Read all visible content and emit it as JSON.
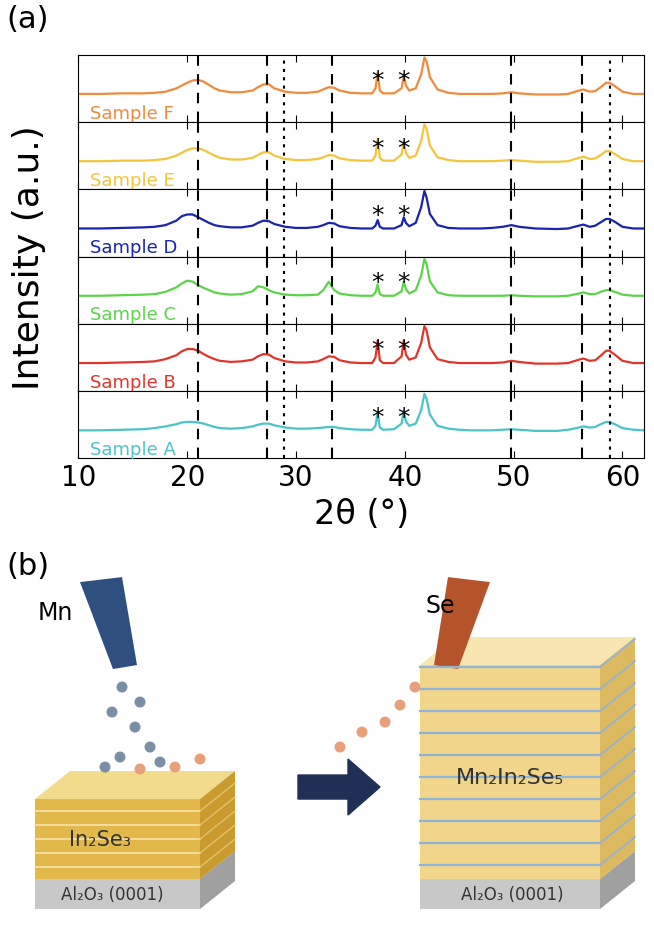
{
  "chart_data": {
    "type": "line",
    "x_label": "2θ (°)",
    "y_label": "Intensity (a.u.)",
    "xlim": [
      10,
      62
    ],
    "xticks": [
      10,
      20,
      30,
      40,
      50,
      60
    ],
    "ylim": [
      -0.2,
      1.0
    ],
    "tick_labels": "x",
    "x": [
      10,
      12,
      14,
      16,
      17,
      18,
      19,
      19.5,
      20,
      20.5,
      21,
      21.5,
      22,
      22.5,
      23,
      24,
      25,
      26,
      26.5,
      27,
      27.5,
      28,
      29,
      30,
      31,
      32,
      32.5,
      33,
      33.5,
      34,
      35,
      36,
      37,
      37.3,
      37.5,
      37.7,
      38,
      39,
      39.7,
      39.9,
      40.1,
      40.4,
      41,
      41.5,
      41.8,
      42,
      42.3,
      43,
      44,
      45,
      46,
      47,
      48,
      49,
      49.8,
      50.5,
      52,
      54,
      55,
      56,
      56.4,
      57,
      57.5,
      58,
      58.5,
      58.8,
      59.3,
      60,
      61,
      62
    ],
    "series": [
      {
        "name": "Sample F",
        "color": "#F08A3C",
        "values": [
          0.3,
          0.3,
          0.31,
          0.31,
          0.32,
          0.34,
          0.4,
          0.45,
          0.5,
          0.54,
          0.55,
          0.52,
          0.46,
          0.4,
          0.36,
          0.33,
          0.33,
          0.36,
          0.42,
          0.47,
          0.47,
          0.4,
          0.34,
          0.32,
          0.32,
          0.34,
          0.38,
          0.42,
          0.41,
          0.36,
          0.32,
          0.31,
          0.31,
          0.4,
          0.68,
          0.36,
          0.31,
          0.31,
          0.4,
          0.62,
          0.45,
          0.36,
          0.4,
          0.65,
          0.95,
          0.88,
          0.6,
          0.38,
          0.32,
          0.3,
          0.3,
          0.3,
          0.3,
          0.31,
          0.33,
          0.31,
          0.29,
          0.29,
          0.3,
          0.36,
          0.38,
          0.34,
          0.35,
          0.42,
          0.5,
          0.5,
          0.44,
          0.34,
          0.3,
          0.3
        ]
      },
      {
        "name": "Sample E",
        "color": "#F2C53D",
        "values": [
          0.3,
          0.3,
          0.31,
          0.31,
          0.32,
          0.34,
          0.4,
          0.45,
          0.5,
          0.53,
          0.53,
          0.5,
          0.45,
          0.4,
          0.36,
          0.33,
          0.33,
          0.36,
          0.41,
          0.46,
          0.46,
          0.4,
          0.34,
          0.32,
          0.32,
          0.34,
          0.37,
          0.41,
          0.4,
          0.35,
          0.32,
          0.31,
          0.31,
          0.4,
          0.7,
          0.36,
          0.31,
          0.31,
          0.42,
          0.66,
          0.45,
          0.36,
          0.4,
          0.66,
          0.96,
          0.88,
          0.58,
          0.37,
          0.32,
          0.3,
          0.3,
          0.3,
          0.3,
          0.31,
          0.32,
          0.31,
          0.29,
          0.29,
          0.3,
          0.36,
          0.38,
          0.34,
          0.35,
          0.41,
          0.48,
          0.48,
          0.43,
          0.34,
          0.3,
          0.3
        ]
      },
      {
        "name": "Sample D",
        "color": "#1A22B0",
        "values": [
          0.3,
          0.3,
          0.31,
          0.32,
          0.33,
          0.36,
          0.44,
          0.52,
          0.55,
          0.55,
          0.5,
          0.45,
          0.4,
          0.36,
          0.34,
          0.32,
          0.32,
          0.35,
          0.4,
          0.44,
          0.43,
          0.38,
          0.33,
          0.31,
          0.31,
          0.33,
          0.36,
          0.4,
          0.39,
          0.34,
          0.31,
          0.3,
          0.3,
          0.35,
          0.45,
          0.33,
          0.3,
          0.3,
          0.36,
          0.5,
          0.4,
          0.34,
          0.4,
          0.68,
          0.97,
          0.85,
          0.56,
          0.36,
          0.31,
          0.3,
          0.3,
          0.3,
          0.31,
          0.33,
          0.36,
          0.33,
          0.3,
          0.29,
          0.3,
          0.35,
          0.37,
          0.33,
          0.35,
          0.41,
          0.47,
          0.47,
          0.42,
          0.33,
          0.3,
          0.3
        ]
      },
      {
        "name": "Sample C",
        "color": "#5BD44A",
        "values": [
          0.3,
          0.3,
          0.31,
          0.32,
          0.33,
          0.37,
          0.45,
          0.52,
          0.57,
          0.55,
          0.49,
          0.44,
          0.4,
          0.36,
          0.34,
          0.32,
          0.33,
          0.38,
          0.47,
          0.45,
          0.4,
          0.36,
          0.32,
          0.31,
          0.31,
          0.32,
          0.4,
          0.55,
          0.4,
          0.34,
          0.31,
          0.3,
          0.3,
          0.36,
          0.5,
          0.33,
          0.3,
          0.3,
          0.38,
          0.55,
          0.42,
          0.34,
          0.4,
          0.66,
          0.96,
          0.86,
          0.56,
          0.36,
          0.31,
          0.3,
          0.3,
          0.3,
          0.3,
          0.3,
          0.31,
          0.3,
          0.29,
          0.29,
          0.3,
          0.34,
          0.36,
          0.33,
          0.33,
          0.37,
          0.4,
          0.4,
          0.37,
          0.32,
          0.3,
          0.3
        ]
      },
      {
        "name": "Sample B",
        "color": "#E0352B",
        "values": [
          0.3,
          0.3,
          0.31,
          0.32,
          0.33,
          0.37,
          0.44,
          0.51,
          0.55,
          0.55,
          0.52,
          0.46,
          0.41,
          0.37,
          0.34,
          0.32,
          0.33,
          0.36,
          0.42,
          0.46,
          0.45,
          0.39,
          0.33,
          0.31,
          0.31,
          0.33,
          0.37,
          0.42,
          0.41,
          0.35,
          0.31,
          0.3,
          0.3,
          0.4,
          0.7,
          0.35,
          0.3,
          0.3,
          0.42,
          0.7,
          0.45,
          0.36,
          0.4,
          0.66,
          0.96,
          0.88,
          0.58,
          0.37,
          0.32,
          0.3,
          0.3,
          0.3,
          0.3,
          0.31,
          0.34,
          0.32,
          0.29,
          0.29,
          0.3,
          0.36,
          0.38,
          0.34,
          0.35,
          0.43,
          0.52,
          0.52,
          0.45,
          0.34,
          0.3,
          0.3
        ]
      },
      {
        "name": "Sample A",
        "color": "#4BC4C8",
        "values": [
          0.3,
          0.3,
          0.31,
          0.32,
          0.34,
          0.37,
          0.41,
          0.44,
          0.45,
          0.45,
          0.44,
          0.42,
          0.39,
          0.36,
          0.34,
          0.33,
          0.34,
          0.37,
          0.4,
          0.42,
          0.42,
          0.39,
          0.35,
          0.33,
          0.33,
          0.34,
          0.35,
          0.36,
          0.36,
          0.34,
          0.32,
          0.31,
          0.31,
          0.38,
          0.62,
          0.35,
          0.31,
          0.32,
          0.42,
          0.65,
          0.46,
          0.38,
          0.42,
          0.66,
          0.95,
          0.86,
          0.58,
          0.38,
          0.33,
          0.31,
          0.3,
          0.3,
          0.3,
          0.31,
          0.32,
          0.31,
          0.29,
          0.29,
          0.31,
          0.35,
          0.37,
          0.35,
          0.36,
          0.41,
          0.45,
          0.45,
          0.41,
          0.34,
          0.31,
          0.3
        ]
      }
    ],
    "reference_lines": [
      {
        "x": 21.0,
        "line_style": "dashed"
      },
      {
        "x": 27.3,
        "line_style": "dashed"
      },
      {
        "x": 28.9,
        "line_style": "dotted"
      },
      {
        "x": 33.3,
        "line_style": "dashed"
      },
      {
        "x": 49.8,
        "line_style": "dashed"
      },
      {
        "x": 56.3,
        "line_style": "dashed"
      },
      {
        "x": 58.9,
        "line_style": "dotted"
      }
    ],
    "annotations": [
      {
        "x": 37.5,
        "text": "*"
      },
      {
        "x": 39.9,
        "text": "*"
      }
    ]
  },
  "panel_labels": [
    "(a)",
    "(b)"
  ],
  "diagram": {
    "sources": [
      "Mn",
      "Se"
    ],
    "before": {
      "film": "In₂Se₃",
      "substrate": "Al₂O₃ (0001)"
    },
    "after": {
      "film": "Mn₂In₂Se₅",
      "substrate": "Al₂O₃ (0001)"
    }
  }
}
